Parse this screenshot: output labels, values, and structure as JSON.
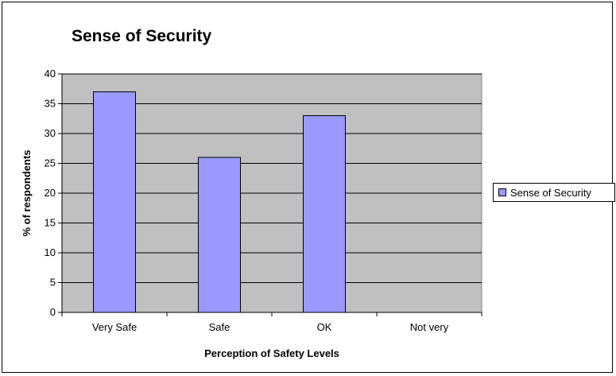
{
  "chart_data": {
    "type": "bar",
    "title": "Sense of Security",
    "xlabel": "Perception of Safety Levels",
    "ylabel": "% of respondents",
    "categories": [
      "Very Safe",
      "Safe",
      "OK",
      "Not very"
    ],
    "series": [
      {
        "name": "Sense of Security",
        "values": [
          37,
          26,
          33,
          0
        ]
      }
    ],
    "ylim": [
      0,
      40
    ],
    "yticks": [
      0,
      5,
      10,
      15,
      20,
      25,
      30,
      35,
      40
    ],
    "grid": true,
    "legend": "right",
    "colors": {
      "bar_fill": "#9999ff",
      "plot_background": "#c0c0c0",
      "axis": "#000000"
    }
  }
}
